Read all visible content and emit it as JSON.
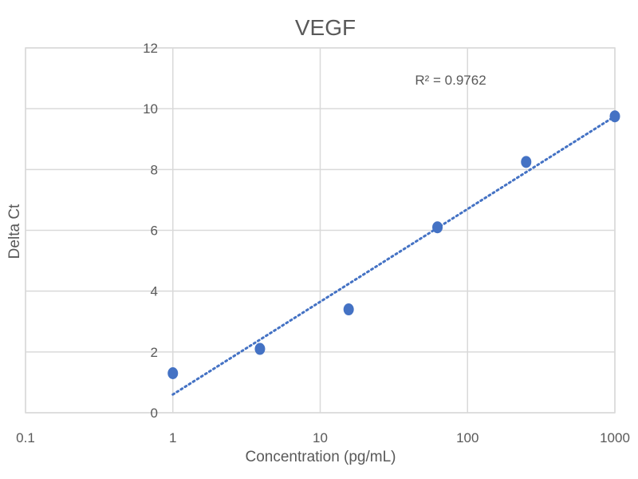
{
  "chart_data": {
    "type": "scatter",
    "title": "VEGF",
    "xlabel": "Concentration (pg/mL)",
    "ylabel": "Delta Ct",
    "x_scale": "log",
    "xlim": [
      0.1,
      1000
    ],
    "ylim": [
      0,
      12
    ],
    "x_ticks": [
      0.1,
      1,
      10,
      100,
      1000
    ],
    "x_tick_labels": [
      "0.1",
      "1",
      "10",
      "100",
      "1000"
    ],
    "y_ticks": [
      0,
      2,
      4,
      6,
      8,
      10,
      12
    ],
    "y_tick_labels": [
      "0",
      "2",
      "4",
      "6",
      "8",
      "10",
      "12"
    ],
    "grid": true,
    "series": [
      {
        "name": "VEGF",
        "x": [
          1,
          3.9,
          15.6,
          62.5,
          250,
          1000
        ],
        "y": [
          1.3,
          2.1,
          3.4,
          6.1,
          8.25,
          9.75
        ]
      }
    ],
    "trendline": {
      "type": "logarithmic",
      "style": "dotted",
      "x_range": [
        1,
        1000
      ],
      "y_at_start": 0.6,
      "y_at_end": 9.75
    },
    "annotation": "R² = 0.9762",
    "colors": {
      "points": "#4472c4",
      "trendline": "#4472c4",
      "grid": "#d9d9d9",
      "text": "#595959"
    }
  }
}
